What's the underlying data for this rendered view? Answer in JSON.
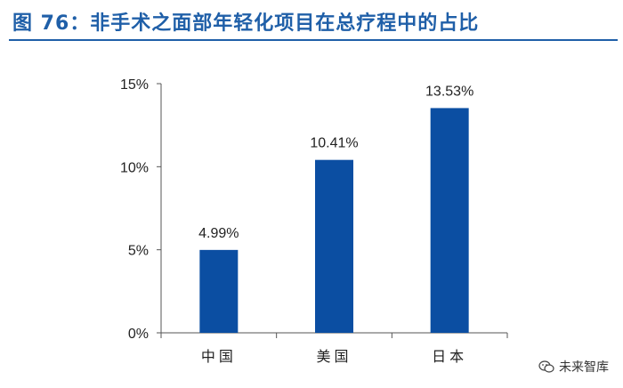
{
  "title": "图 76：非手术之面部年轻化项目在总疗程中的占比",
  "watermark": "未来智库",
  "colors": {
    "title": "#1f5fa8",
    "bar": "#0b4ea2",
    "axis": "#555555",
    "text": "#222222"
  },
  "chart_data": {
    "type": "bar",
    "categories": [
      "中国",
      "美国",
      "日本"
    ],
    "values": [
      4.99,
      10.41,
      13.53
    ],
    "data_labels": [
      "4.99%",
      "10.41%",
      "13.53%"
    ],
    "title": "",
    "xlabel": "",
    "ylabel": "",
    "ylim": [
      0,
      15
    ],
    "yticks": [
      0,
      5,
      10,
      15
    ],
    "ytick_labels": [
      "0%",
      "5%",
      "10%",
      "15%"
    ],
    "grid": false,
    "legend": "none"
  }
}
